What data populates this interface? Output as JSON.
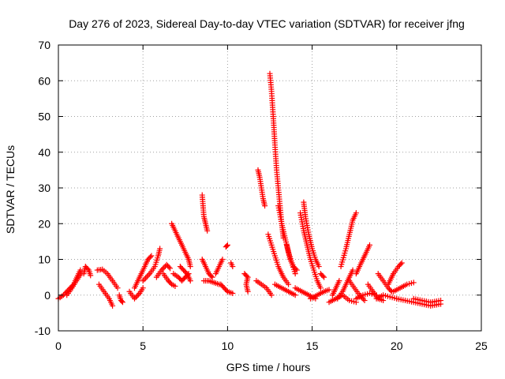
{
  "chart_data": {
    "type": "scatter",
    "title": "Day 276 of 2023, Sidereal Day-to-day VTEC variation (SDTVAR) for receiver jfng",
    "xlabel": "GPS time / hours",
    "ylabel": "SDTVAR / TECUs",
    "xlim": [
      0,
      25
    ],
    "ylim": [
      -10,
      70
    ],
    "xticks": [
      0,
      5,
      10,
      15,
      20,
      25
    ],
    "yticks": [
      -10,
      0,
      10,
      20,
      30,
      40,
      50,
      60,
      70
    ],
    "grid": true,
    "marker": "+",
    "color": "#ff0000",
    "segments": [
      {
        "name": "arc-01",
        "points": [
          [
            0.0,
            -1
          ],
          [
            0.3,
            0
          ],
          [
            0.6,
            1.5
          ],
          [
            0.9,
            3
          ],
          [
            1.1,
            5
          ],
          [
            1.3,
            7
          ]
        ]
      },
      {
        "name": "arc-02",
        "points": [
          [
            0.5,
            0
          ],
          [
            0.8,
            2
          ],
          [
            1.0,
            3.5
          ],
          [
            1.2,
            5
          ],
          [
            1.4,
            6.5
          ]
        ]
      },
      {
        "name": "arc-03",
        "points": [
          [
            1.5,
            6
          ],
          [
            1.6,
            8
          ],
          [
            1.8,
            7
          ],
          [
            1.9,
            5.5
          ]
        ]
      },
      {
        "name": "arc-04",
        "points": [
          [
            2.3,
            7
          ],
          [
            2.6,
            7.2
          ],
          [
            2.9,
            6
          ],
          [
            3.2,
            4
          ],
          [
            3.5,
            2
          ]
        ]
      },
      {
        "name": "arc-05",
        "points": [
          [
            2.4,
            3
          ],
          [
            2.7,
            1
          ],
          [
            3.0,
            -1
          ],
          [
            3.2,
            -3
          ]
        ]
      },
      {
        "name": "arc-06",
        "points": [
          [
            3.6,
            0
          ],
          [
            3.7,
            -1.5
          ],
          [
            3.8,
            -2
          ]
        ]
      },
      {
        "name": "arc-07",
        "points": [
          [
            4.2,
            1
          ],
          [
            4.5,
            -1
          ],
          [
            4.8,
            0.5
          ],
          [
            5.0,
            2
          ]
        ]
      },
      {
        "name": "arc-08",
        "points": [
          [
            4.5,
            2
          ],
          [
            4.8,
            5
          ],
          [
            5.1,
            8
          ],
          [
            5.3,
            10
          ],
          [
            5.5,
            11
          ]
        ]
      },
      {
        "name": "arc-09",
        "points": [
          [
            5.0,
            4
          ],
          [
            5.4,
            6
          ],
          [
            5.7,
            8
          ],
          [
            5.9,
            11
          ],
          [
            6.0,
            13
          ]
        ]
      },
      {
        "name": "arc-10",
        "points": [
          [
            5.8,
            5
          ],
          [
            6.1,
            7
          ],
          [
            6.4,
            8.5
          ],
          [
            6.6,
            7.5
          ]
        ]
      },
      {
        "name": "arc-11",
        "points": [
          [
            6.2,
            6
          ],
          [
            6.5,
            4
          ],
          [
            6.7,
            3
          ],
          [
            6.9,
            2.5
          ]
        ]
      },
      {
        "name": "arc-12",
        "points": [
          [
            6.7,
            20
          ],
          [
            6.9,
            18
          ],
          [
            7.1,
            16
          ],
          [
            7.3,
            14
          ],
          [
            7.5,
            12
          ],
          [
            7.7,
            10
          ],
          [
            7.8,
            8
          ]
        ]
      },
      {
        "name": "arc-13",
        "points": [
          [
            6.8,
            6
          ],
          [
            7.1,
            5
          ],
          [
            7.3,
            4
          ],
          [
            7.5,
            5
          ],
          [
            7.7,
            6
          ]
        ]
      },
      {
        "name": "arc-14",
        "points": [
          [
            7.2,
            8
          ],
          [
            7.4,
            7
          ],
          [
            7.6,
            6
          ],
          [
            7.8,
            4
          ]
        ]
      },
      {
        "name": "arc-15",
        "points": [
          [
            8.5,
            28
          ],
          [
            8.55,
            25
          ],
          [
            8.6,
            22
          ],
          [
            8.7,
            20
          ],
          [
            8.8,
            18
          ]
        ]
      },
      {
        "name": "arc-16",
        "points": [
          [
            8.5,
            10
          ],
          [
            8.7,
            8
          ],
          [
            8.9,
            6
          ],
          [
            9.1,
            5
          ]
        ]
      },
      {
        "name": "arc-17",
        "points": [
          [
            8.6,
            4
          ],
          [
            8.9,
            4
          ],
          [
            9.2,
            3.5
          ],
          [
            9.5,
            3
          ]
        ]
      },
      {
        "name": "arc-18",
        "points": [
          [
            9.3,
            6
          ],
          [
            9.5,
            8
          ],
          [
            9.7,
            10
          ]
        ]
      },
      {
        "name": "arc-19",
        "points": [
          [
            9.6,
            3
          ],
          [
            9.8,
            2
          ],
          [
            10.0,
            1
          ],
          [
            10.3,
            0.5
          ]
        ]
      },
      {
        "name": "arc-20",
        "points": [
          [
            9.9,
            13.5
          ],
          [
            10.0,
            14
          ]
        ]
      },
      {
        "name": "arc-21",
        "points": [
          [
            10.2,
            9
          ],
          [
            10.3,
            8
          ]
        ]
      },
      {
        "name": "arc-22",
        "points": [
          [
            11.0,
            6
          ],
          [
            11.2,
            5
          ],
          [
            11.1,
            3
          ],
          [
            11.2,
            1
          ]
        ]
      },
      {
        "name": "arc-23",
        "points": [
          [
            11.7,
            4
          ],
          [
            12.0,
            3
          ],
          [
            12.3,
            2
          ],
          [
            12.6,
            0
          ]
        ]
      },
      {
        "name": "arc-24",
        "points": [
          [
            11.8,
            35
          ],
          [
            11.9,
            33
          ],
          [
            12.0,
            30
          ],
          [
            12.1,
            27
          ],
          [
            12.2,
            25
          ]
        ]
      },
      {
        "name": "arc-25",
        "points": [
          [
            12.4,
            17
          ],
          [
            12.6,
            14
          ],
          [
            12.8,
            11
          ],
          [
            13.0,
            8
          ],
          [
            13.3,
            5
          ],
          [
            13.6,
            3
          ]
        ]
      },
      {
        "name": "arc-26",
        "points": [
          [
            12.5,
            62
          ],
          [
            12.6,
            57
          ],
          [
            12.7,
            50
          ],
          [
            12.8,
            42
          ],
          [
            12.9,
            35
          ],
          [
            13.0,
            30
          ],
          [
            13.1,
            25
          ],
          [
            13.2,
            20
          ],
          [
            13.3,
            16
          ]
        ]
      },
      {
        "name": "arc-27",
        "points": [
          [
            12.8,
            3
          ],
          [
            13.2,
            2
          ],
          [
            13.6,
            1
          ],
          [
            14.0,
            0
          ]
        ]
      },
      {
        "name": "arc-28",
        "points": [
          [
            13.0,
            25
          ],
          [
            13.2,
            20
          ],
          [
            13.4,
            16
          ],
          [
            13.6,
            12
          ],
          [
            13.8,
            9
          ],
          [
            14.0,
            6
          ]
        ]
      },
      {
        "name": "arc-29",
        "points": [
          [
            13.5,
            14
          ],
          [
            13.7,
            10
          ],
          [
            13.9,
            8
          ],
          [
            14.1,
            7
          ]
        ]
      },
      {
        "name": "arc-30",
        "points": [
          [
            14.0,
            2
          ],
          [
            14.4,
            1
          ],
          [
            14.8,
            0
          ],
          [
            15.2,
            -1
          ]
        ]
      },
      {
        "name": "arc-31",
        "points": [
          [
            14.3,
            23
          ],
          [
            14.5,
            18
          ],
          [
            14.7,
            14
          ],
          [
            14.9,
            10
          ],
          [
            15.1,
            7
          ],
          [
            15.3,
            4
          ],
          [
            15.5,
            2
          ]
        ]
      },
      {
        "name": "arc-32",
        "points": [
          [
            14.5,
            26
          ],
          [
            14.6,
            22
          ],
          [
            14.8,
            17
          ],
          [
            15.0,
            13
          ],
          [
            15.2,
            10
          ],
          [
            15.4,
            8
          ]
        ]
      },
      {
        "name": "arc-33",
        "points": [
          [
            14.9,
            -1
          ],
          [
            15.3,
            0
          ],
          [
            15.7,
            1
          ],
          [
            16.0,
            1.5
          ]
        ]
      },
      {
        "name": "arc-34",
        "points": [
          [
            15.5,
            6
          ],
          [
            15.7,
            5
          ]
        ]
      },
      {
        "name": "arc-35",
        "points": [
          [
            16.0,
            -2
          ],
          [
            16.4,
            -1
          ],
          [
            16.8,
            0
          ],
          [
            17.2,
            -1.5
          ],
          [
            17.6,
            -2
          ]
        ]
      },
      {
        "name": "arc-36",
        "points": [
          [
            16.2,
            0
          ],
          [
            16.4,
            2
          ],
          [
            16.6,
            4
          ]
        ]
      },
      {
        "name": "arc-37",
        "points": [
          [
            16.5,
            -1
          ],
          [
            16.8,
            1
          ],
          [
            17.0,
            3
          ],
          [
            17.2,
            5
          ],
          [
            17.4,
            7
          ]
        ]
      },
      {
        "name": "arc-38",
        "points": [
          [
            16.7,
            8
          ],
          [
            17.0,
            13
          ],
          [
            17.2,
            17
          ],
          [
            17.4,
            21
          ],
          [
            17.6,
            23
          ]
        ]
      },
      {
        "name": "arc-39",
        "points": [
          [
            17.2,
            4
          ],
          [
            17.5,
            2
          ],
          [
            17.8,
            0
          ],
          [
            18.1,
            -1.5
          ]
        ]
      },
      {
        "name": "arc-40",
        "points": [
          [
            17.6,
            6
          ],
          [
            17.9,
            9
          ],
          [
            18.2,
            12
          ],
          [
            18.4,
            14
          ]
        ]
      },
      {
        "name": "arc-41",
        "points": [
          [
            17.6,
            -1
          ],
          [
            18.0,
            0
          ],
          [
            18.4,
            0.5
          ],
          [
            18.8,
            0
          ]
        ]
      },
      {
        "name": "arc-42",
        "points": [
          [
            18.3,
            3
          ],
          [
            18.6,
            1
          ],
          [
            18.9,
            -1
          ],
          [
            19.2,
            -1.5
          ]
        ]
      },
      {
        "name": "arc-43",
        "points": [
          [
            18.8,
            -1
          ],
          [
            19.2,
            0
          ],
          [
            19.6,
            -0.5
          ],
          [
            20.0,
            -1
          ]
        ]
      },
      {
        "name": "arc-44",
        "points": [
          [
            18.9,
            6
          ],
          [
            19.2,
            4
          ],
          [
            19.5,
            2
          ],
          [
            19.7,
            1
          ]
        ]
      },
      {
        "name": "arc-45",
        "points": [
          [
            19.5,
            3
          ],
          [
            19.8,
            6
          ],
          [
            20.1,
            8
          ],
          [
            20.3,
            9
          ]
        ]
      },
      {
        "name": "arc-46",
        "points": [
          [
            19.8,
            1
          ],
          [
            20.2,
            2
          ],
          [
            20.6,
            3
          ],
          [
            21.0,
            3.5
          ]
        ]
      },
      {
        "name": "arc-47",
        "points": [
          [
            20.0,
            -1
          ],
          [
            20.5,
            -1.5
          ],
          [
            21.0,
            -2
          ],
          [
            21.5,
            -2.5
          ],
          [
            22.0,
            -3
          ],
          [
            22.6,
            -2.5
          ]
        ]
      },
      {
        "name": "arc-48",
        "points": [
          [
            21.0,
            -1
          ],
          [
            21.5,
            -1.5
          ],
          [
            22.0,
            -2
          ],
          [
            22.6,
            -1.5
          ]
        ]
      }
    ]
  }
}
